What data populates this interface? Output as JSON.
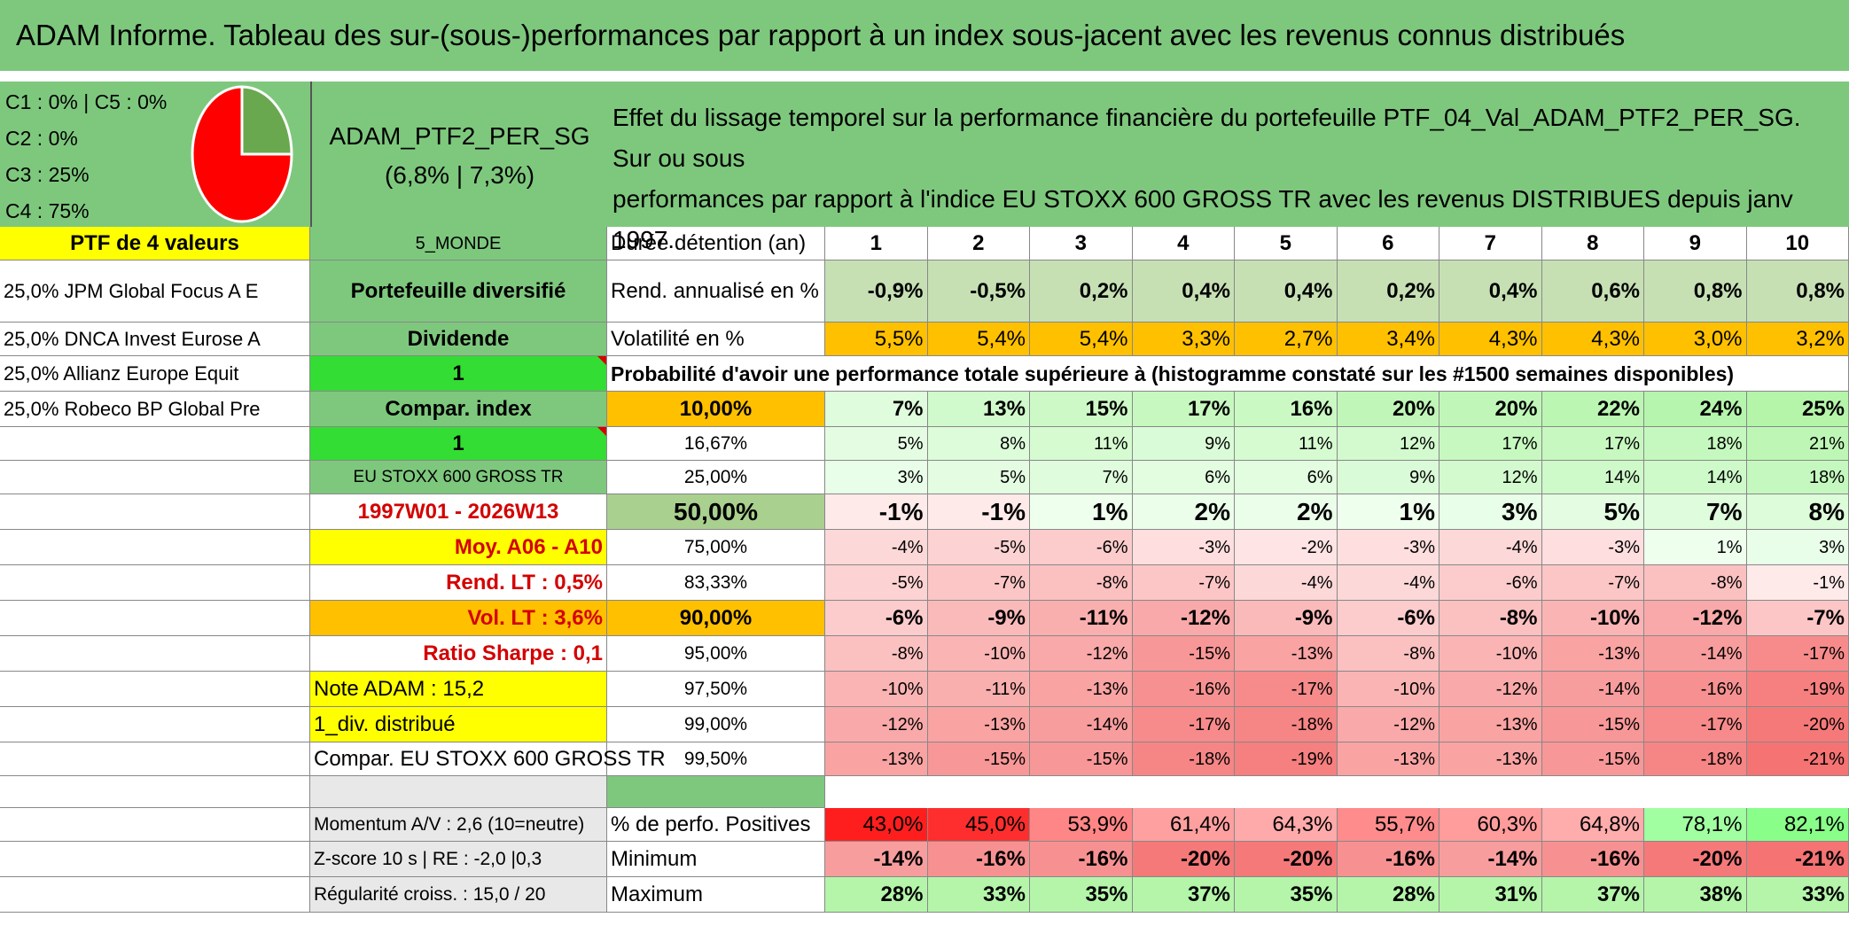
{
  "title": "ADAM Informe. Tableau des sur-(sous-)performances par rapport à un index sous-jacent avec les revenus connus distribués",
  "legend": [
    "C1 : 0% | C5 : 0%",
    "C2 : 0%",
    "C3 : 25%",
    "C4 : 75%"
  ],
  "pie": {
    "slices": [
      {
        "label": "C3",
        "value": 25,
        "color": "#6aa84f"
      },
      {
        "label": "C4",
        "value": 75,
        "color": "#ff0000"
      }
    ]
  },
  "portfolio": {
    "name": "ADAM_PTF2_PER_SG",
    "perf": "(6,8% | 7,3%)"
  },
  "effect_text_1": "Effet du lissage temporel sur la performance financière du portefeuille PTF_04_Val_ADAM_PTF2_PER_SG. Sur ou sous",
  "effect_text_2": "performances par rapport à l'indice EU STOXX 600 GROSS TR avec les revenus DISTRIBUES depuis janv 1997.",
  "col_a": [
    "PTF de 4 valeurs",
    "25,0% JPM Global Focus A E",
    "25,0% DNCA Invest Eurose A",
    "25,0% Allianz Europe Equit",
    "25,0% Robeco BP Global Pre"
  ],
  "col_b": {
    "region": "5_MONDE",
    "diversified": "Portefeuille diversifié",
    "dividend": "Dividende",
    "one_a": "1",
    "compar_index": "Compar. index",
    "one_b": "1",
    "index_name": "EU STOXX 600 GROSS TR",
    "period": "1997W01 - 2026W13",
    "avg": "Moy. A06 - A10",
    "rend_lt": "Rend. LT : 0,5%",
    "vol_lt": "Vol. LT : 3,6%",
    "sharpe": "Ratio Sharpe : 0,1",
    "note": "Note ADAM : 15,2",
    "div": "1_div. distribué",
    "compar_full": "Compar. EU STOXX 600 GROSS TR",
    "momentum": "Momentum A/V : 2,6 (10=neutre)",
    "zscore": "Z-score 10 s | RE : -2,0 |0,3",
    "regularite": "Régularité croiss. : 15,0 / 20"
  },
  "header": {
    "label": "Durée détention (an)",
    "years": [
      "1",
      "2",
      "3",
      "4",
      "5",
      "6",
      "7",
      "8",
      "9",
      "10"
    ]
  },
  "rend": {
    "label": "Rend. annualisé en %",
    "values": [
      "-0,9%",
      "-0,5%",
      "0,2%",
      "0,4%",
      "0,4%",
      "0,2%",
      "0,4%",
      "0,6%",
      "0,8%",
      "0,8%"
    ]
  },
  "vol": {
    "label": "Volatilité en %",
    "values": [
      "5,5%",
      "5,4%",
      "5,4%",
      "3,3%",
      "2,7%",
      "3,4%",
      "4,3%",
      "4,3%",
      "3,0%",
      "3,2%"
    ]
  },
  "prob_title": "Probabilité d'avoir une performance totale supérieure à (histogramme constaté sur les #1500 semaines disponibles)",
  "prob_rows": [
    {
      "q": "10,00%",
      "v": [
        "7%",
        "13%",
        "15%",
        "17%",
        "16%",
        "20%",
        "20%",
        "22%",
        "24%",
        "25%"
      ]
    },
    {
      "q": "16,67%",
      "v": [
        "5%",
        "8%",
        "11%",
        "9%",
        "11%",
        "12%",
        "17%",
        "17%",
        "18%",
        "21%"
      ]
    },
    {
      "q": "25,00%",
      "v": [
        "3%",
        "5%",
        "7%",
        "6%",
        "6%",
        "9%",
        "12%",
        "14%",
        "14%",
        "18%"
      ]
    },
    {
      "q": "50,00%",
      "v": [
        "-1%",
        "-1%",
        "1%",
        "2%",
        "2%",
        "1%",
        "3%",
        "5%",
        "7%",
        "8%"
      ]
    },
    {
      "q": "75,00%",
      "v": [
        "-4%",
        "-5%",
        "-6%",
        "-3%",
        "-2%",
        "-3%",
        "-4%",
        "-3%",
        "1%",
        "3%"
      ]
    },
    {
      "q": "83,33%",
      "v": [
        "-5%",
        "-7%",
        "-8%",
        "-7%",
        "-4%",
        "-4%",
        "-6%",
        "-7%",
        "-8%",
        "-1%"
      ]
    },
    {
      "q": "90,00%",
      "v": [
        "-6%",
        "-9%",
        "-11%",
        "-12%",
        "-9%",
        "-6%",
        "-8%",
        "-10%",
        "-12%",
        "-7%"
      ]
    },
    {
      "q": "95,00%",
      "v": [
        "-8%",
        "-10%",
        "-12%",
        "-15%",
        "-13%",
        "-8%",
        "-10%",
        "-13%",
        "-14%",
        "-17%"
      ]
    },
    {
      "q": "97,50%",
      "v": [
        "-10%",
        "-11%",
        "-13%",
        "-16%",
        "-17%",
        "-10%",
        "-12%",
        "-14%",
        "-16%",
        "-19%"
      ]
    },
    {
      "q": "99,00%",
      "v": [
        "-12%",
        "-13%",
        "-14%",
        "-17%",
        "-18%",
        "-12%",
        "-13%",
        "-15%",
        "-17%",
        "-20%"
      ]
    },
    {
      "q": "99,50%",
      "v": [
        "-13%",
        "-15%",
        "-15%",
        "-18%",
        "-19%",
        "-13%",
        "-13%",
        "-15%",
        "-18%",
        "-21%"
      ]
    }
  ],
  "pos": {
    "label": "% de perfo. Positives",
    "values": [
      "43,0%",
      "45,0%",
      "53,9%",
      "61,4%",
      "64,3%",
      "55,7%",
      "60,3%",
      "64,8%",
      "78,1%",
      "82,1%"
    ]
  },
  "min": {
    "label": "Minimum",
    "values": [
      "-14%",
      "-16%",
      "-16%",
      "-20%",
      "-20%",
      "-16%",
      "-14%",
      "-16%",
      "-20%",
      "-21%"
    ]
  },
  "max": {
    "label": "Maximum",
    "values": [
      "28%",
      "33%",
      "35%",
      "37%",
      "35%",
      "28%",
      "31%",
      "37%",
      "38%",
      "33%"
    ]
  },
  "colors": {
    "green": "#7ec87e",
    "yellow": "#ffff00",
    "orange": "#ffc000",
    "bright_green": "#33dd33",
    "red": "#d40000"
  }
}
